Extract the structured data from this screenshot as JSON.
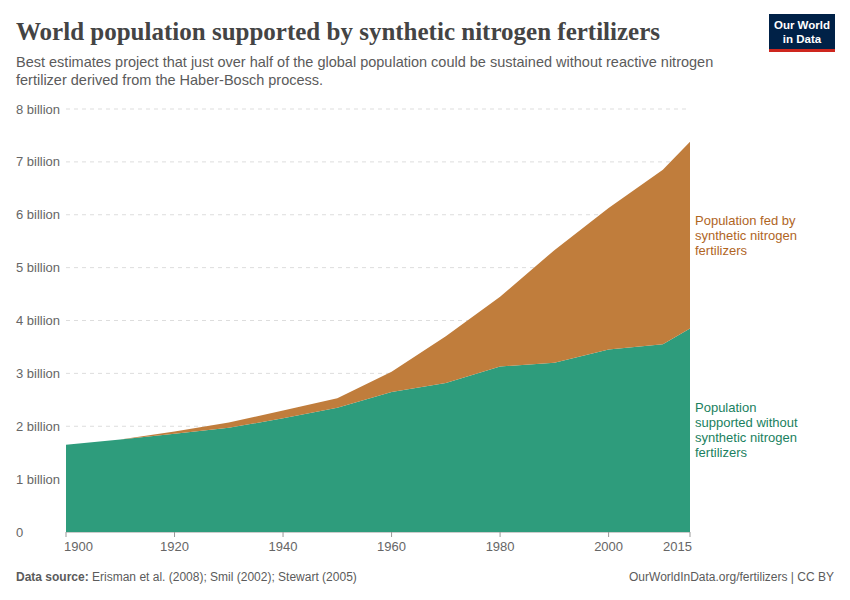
{
  "chart_data": {
    "type": "area",
    "title": "World population supported by synthetic nitrogen fertilizers",
    "subtitle": [
      "Best estimates project that just over half of the global population could be sustained without reactive nitrogen",
      "fertilizer derived from the Haber-Bosch process."
    ],
    "source": "Data source: Erisman et al. (2008); Smil (2002); Stewart (2005)",
    "url": "OurWorldInData.org/fertilizers | CC BY",
    "logo": [
      "Our World",
      "in Data"
    ],
    "x": [
      1900,
      1910,
      1920,
      1930,
      1940,
      1950,
      1960,
      1970,
      1980,
      1990,
      2000,
      2010,
      2015
    ],
    "series": [
      {
        "name": "Population supported without synthetic nitrogen fertilizers",
        "color": "#2e9c7c",
        "values": [
          1.65,
          1.75,
          1.86,
          1.97,
          2.15,
          2.35,
          2.65,
          2.82,
          3.13,
          3.2,
          3.45,
          3.55,
          3.85
        ]
      },
      {
        "name": "Population fed by synthetic nitrogen fertilizers",
        "color": "#c07d3c",
        "values": [
          0,
          0,
          0.04,
          0.1,
          0.15,
          0.18,
          0.38,
          0.88,
          1.32,
          2.13,
          2.68,
          3.3,
          3.53
        ]
      }
    ],
    "stacked": true,
    "xlim": [
      1900,
      2015
    ],
    "xticks": [
      1900,
      1920,
      1940,
      1960,
      1980,
      2000,
      2015
    ],
    "ylim": [
      0,
      8
    ],
    "yticks": [
      0,
      {
        "value": 1,
        "label": "1 billion"
      },
      {
        "value": 2,
        "label": "2 billion"
      },
      {
        "value": 3,
        "label": "3 billion"
      },
      {
        "value": 4,
        "label": "4 billion"
      },
      {
        "value": 5,
        "label": "5 billion"
      },
      {
        "value": 6,
        "label": "6 billion"
      },
      {
        "value": 7,
        "label": "7 billion"
      },
      {
        "value": 8,
        "label": "8 billion"
      }
    ],
    "grid": true
  }
}
